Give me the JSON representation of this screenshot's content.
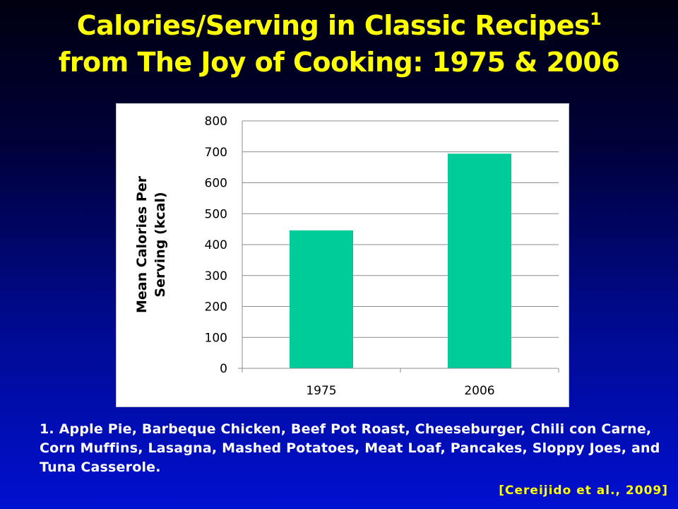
{
  "slide": {
    "title_line1": "Calories/Serving in Classic Recipes",
    "title_footnote_marker": "1",
    "title_line2": "from The Joy of Cooking: 1975 & 2006",
    "footnote": "1.  Apple Pie, Barbeque Chicken, Beef Pot Roast, Cheeseburger, Chili con Carne, Corn Muffins, Lasagna, Mashed Potatoes, Meat Loaf, Pancakes, Sloppy Joes, and Tuna Casserole.",
    "citation": "[Cereijido et al., 2009]"
  },
  "chart_data": {
    "type": "bar",
    "categories": [
      "1975",
      "2006"
    ],
    "values": [
      446,
      694
    ],
    "ylabel_lines": [
      "Mean Calories Per",
      "Serving (kcal)"
    ],
    "ylim": [
      0,
      800
    ],
    "yticks": [
      0,
      100,
      200,
      300,
      400,
      500,
      600,
      700,
      800
    ],
    "grid": true,
    "legend": "none",
    "bar_color": "#00cc99"
  }
}
